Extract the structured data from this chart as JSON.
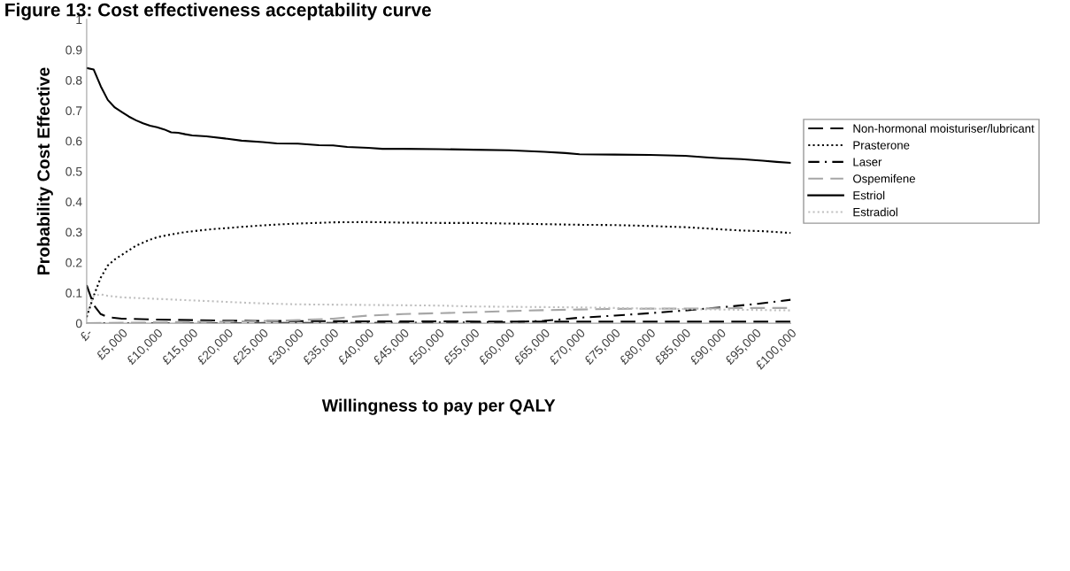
{
  "chart_data": {
    "type": "line",
    "title": "Figure 13: Cost effectiveness acceptability curve",
    "xlabel": "Willingness to pay per QALY",
    "ylabel": "Probability Cost Effective",
    "xlim": [
      0,
      100000
    ],
    "xticks": [
      {
        "value": 0,
        "label": "£-"
      },
      {
        "value": 5000,
        "label": "£5,000"
      },
      {
        "value": 10000,
        "label": "£10,000"
      },
      {
        "value": 15000,
        "label": "£15,000"
      },
      {
        "value": 20000,
        "label": "£20,000"
      },
      {
        "value": 25000,
        "label": "£25,000"
      },
      {
        "value": 30000,
        "label": "£30,000"
      },
      {
        "value": 35000,
        "label": "£35,000"
      },
      {
        "value": 40000,
        "label": "£40,000"
      },
      {
        "value": 45000,
        "label": "£45,000"
      },
      {
        "value": 50000,
        "label": "£50,000"
      },
      {
        "value": 55000,
        "label": "£55,000"
      },
      {
        "value": 60000,
        "label": "£60,000"
      },
      {
        "value": 65000,
        "label": "£65,000"
      },
      {
        "value": 70000,
        "label": "£70,000"
      },
      {
        "value": 75000,
        "label": "£75,000"
      },
      {
        "value": 80000,
        "label": "£80,000"
      },
      {
        "value": 85000,
        "label": "£85,000"
      },
      {
        "value": 90000,
        "label": "£90,000"
      },
      {
        "value": 95000,
        "label": "£95,000"
      },
      {
        "value": 100000,
        "label": "£100,000"
      }
    ],
    "ylim": [
      0,
      1
    ],
    "yticks": [
      0,
      0.1,
      0.2,
      0.3,
      0.4,
      0.5,
      0.6,
      0.7,
      0.8,
      0.9,
      1
    ],
    "grid": false,
    "legend": "right",
    "series": [
      {
        "name": "Non-hormonal moisturiser/lubricant",
        "color": "#000000",
        "line_style": "dashed",
        "x": [
          0,
          1000,
          2000,
          3000,
          5000,
          10000,
          15000,
          20000,
          30000,
          40000,
          50000,
          60000,
          70000,
          100000
        ],
        "values": [
          0.125,
          0.06,
          0.03,
          0.02,
          0.015,
          0.012,
          0.01,
          0.008,
          0.007,
          0.006,
          0.006,
          0.005,
          0.005,
          0.005
        ]
      },
      {
        "name": "Prasterone",
        "color": "#000000",
        "line_style": "dotted",
        "x": [
          0,
          1000,
          2000,
          3000,
          4000,
          5000,
          6000,
          7000,
          8000,
          9000,
          10000,
          12000,
          14000,
          16000,
          18000,
          20000,
          22000,
          25000,
          28000,
          30000,
          35000,
          40000,
          45000,
          50000,
          55000,
          60000,
          65000,
          70000,
          75000,
          80000,
          85000,
          88000,
          90000,
          93000,
          96000,
          100000
        ],
        "values": [
          0.02,
          0.09,
          0.15,
          0.19,
          0.21,
          0.225,
          0.24,
          0.255,
          0.265,
          0.275,
          0.283,
          0.292,
          0.3,
          0.305,
          0.31,
          0.313,
          0.317,
          0.322,
          0.326,
          0.328,
          0.332,
          0.333,
          0.331,
          0.33,
          0.33,
          0.328,
          0.326,
          0.324,
          0.323,
          0.32,
          0.316,
          0.312,
          0.309,
          0.305,
          0.303,
          0.297
        ]
      },
      {
        "name": "Laser",
        "color": "#000000",
        "line_style": "dashdot",
        "x": [
          0,
          10000,
          20000,
          30000,
          40000,
          50000,
          60000,
          65000,
          70000,
          75000,
          80000,
          85000,
          90000,
          95000,
          100000
        ],
        "values": [
          0,
          0,
          0,
          0.001,
          0.001,
          0.002,
          0.003,
          0.008,
          0.018,
          0.025,
          0.033,
          0.042,
          0.052,
          0.063,
          0.077
        ]
      },
      {
        "name": "Ospemifene",
        "color": "#a6a6a6",
        "line_style": "dashed",
        "x": [
          0,
          10000,
          20000,
          30000,
          35000,
          40000,
          45000,
          50000,
          55000,
          60000,
          65000,
          70000,
          75000,
          80000,
          85000,
          90000,
          95000,
          100000
        ],
        "values": [
          0,
          0.003,
          0.005,
          0.01,
          0.015,
          0.025,
          0.03,
          0.033,
          0.036,
          0.04,
          0.043,
          0.045,
          0.047,
          0.048,
          0.048,
          0.049,
          0.05,
          0.05
        ]
      },
      {
        "name": "Estriol",
        "color": "#000000",
        "line_style": "solid",
        "x": [
          0,
          1000,
          2000,
          3000,
          4000,
          5000,
          6000,
          7000,
          8000,
          9000,
          10000,
          11000,
          12000,
          13000,
          14000,
          15000,
          17000,
          20000,
          22000,
          25000,
          27000,
          30000,
          33000,
          35000,
          37000,
          40000,
          42000,
          45000,
          50000,
          55000,
          60000,
          65000,
          68000,
          70000,
          75000,
          80000,
          85000,
          88000,
          90000,
          93000,
          96000,
          98000,
          100000
        ],
        "values": [
          0.84,
          0.835,
          0.78,
          0.735,
          0.71,
          0.695,
          0.68,
          0.668,
          0.658,
          0.65,
          0.645,
          0.638,
          0.628,
          0.627,
          0.622,
          0.618,
          0.615,
          0.607,
          0.601,
          0.596,
          0.592,
          0.591,
          0.586,
          0.585,
          0.58,
          0.577,
          0.574,
          0.574,
          0.573,
          0.571,
          0.569,
          0.564,
          0.56,
          0.556,
          0.555,
          0.554,
          0.551,
          0.546,
          0.543,
          0.54,
          0.535,
          0.531,
          0.528
        ]
      },
      {
        "name": "Estradiol",
        "color": "#bfbfbf",
        "line_style": "dotted",
        "x": [
          0,
          1000,
          2000,
          3000,
          5000,
          10000,
          15000,
          20000,
          25000,
          30000,
          40000,
          50000,
          55000,
          60000,
          70000,
          80000,
          90000,
          100000
        ],
        "values": [
          0.03,
          0.09,
          0.095,
          0.09,
          0.085,
          0.08,
          0.075,
          0.07,
          0.065,
          0.062,
          0.06,
          0.058,
          0.055,
          0.054,
          0.052,
          0.048,
          0.045,
          0.042
        ]
      }
    ]
  }
}
